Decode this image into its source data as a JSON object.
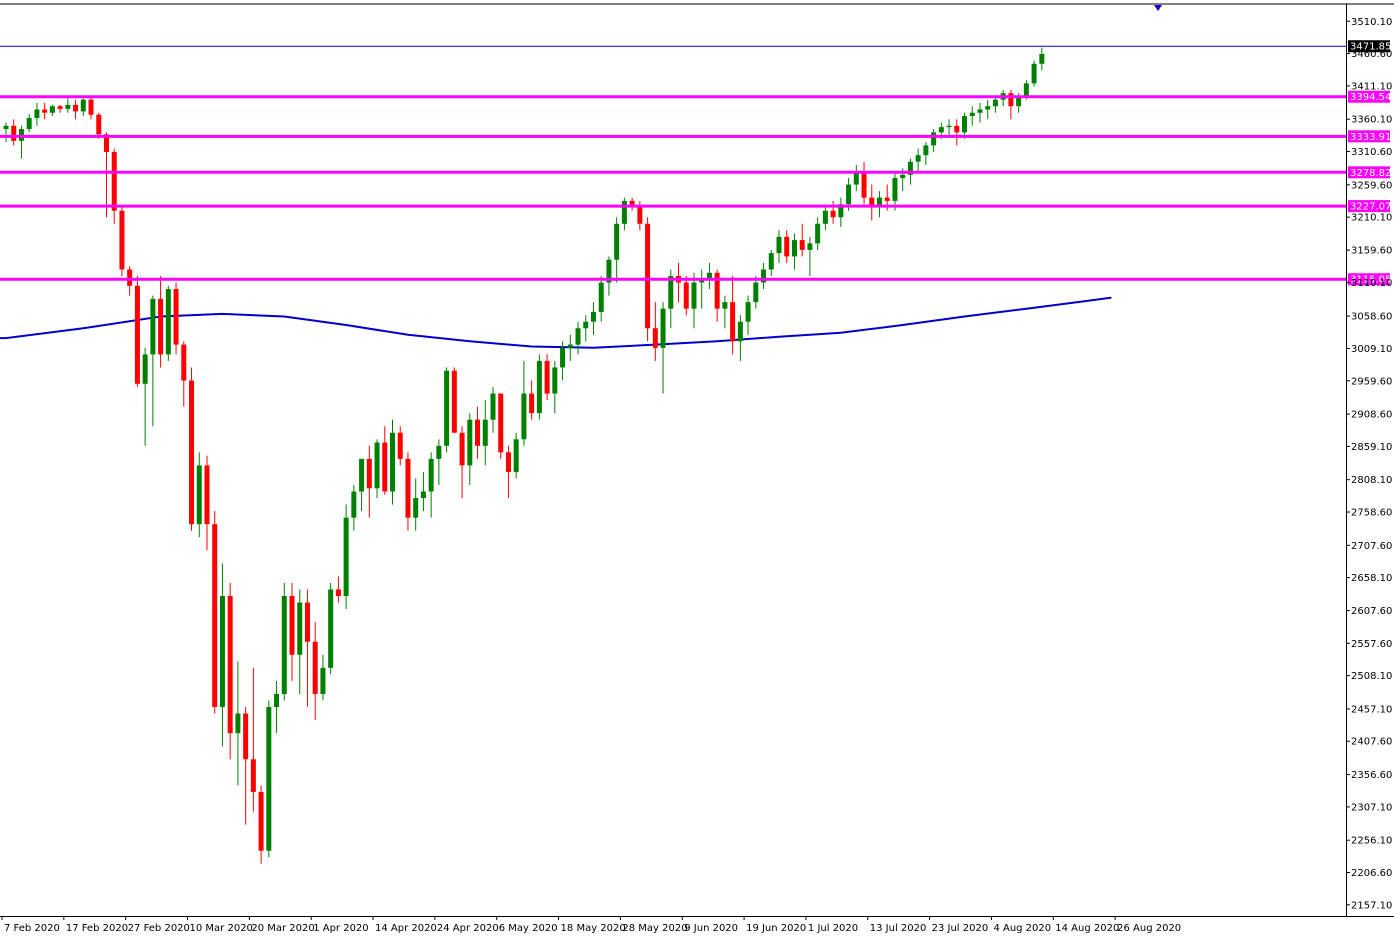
{
  "chart_data": {
    "type": "candlestick",
    "colors": {
      "background": "#ffffff",
      "bull": "#008000",
      "bear": "#ff0000",
      "moving_average": "#0000c8",
      "levels": "#ff00ff",
      "current_price": "#0000c8",
      "axis": "#000000"
    },
    "y_ticks": [
      "3510.10",
      "3460.60",
      "3411.10",
      "3360.10",
      "3310.60",
      "3259.60",
      "3210.10",
      "3159.60",
      "3110.10",
      "3058.60",
      "3009.10",
      "2959.60",
      "2908.60",
      "2859.10",
      "2808.10",
      "2758.60",
      "2707.60",
      "2658.10",
      "2607.60",
      "2557.60",
      "2508.10",
      "2457.10",
      "2407.60",
      "2356.60",
      "2307.10",
      "2256.10",
      "2206.60",
      "2157.10"
    ],
    "x_ticks": [
      "7 Feb 2020",
      "17 Feb 2020",
      "27 Feb 2020",
      "10 Mar 2020",
      "20 Mar 2020",
      "1 Apr 2020",
      "14 Apr 2020",
      "24 Apr 2020",
      "6 May 2020",
      "18 May 2020",
      "28 May 2020",
      "9 Jun 2020",
      "19 Jun 2020",
      "1 Jul 2020",
      "13 Jul 2020",
      "23 Jul 2020",
      "4 Aug 2020",
      "14 Aug 2020",
      "26 Aug 2020"
    ],
    "x_tick_bars": [
      0,
      8,
      16,
      24,
      32,
      40,
      48,
      56,
      64,
      72,
      80,
      88,
      96,
      104,
      112,
      120,
      128,
      136,
      144
    ],
    "ylim": [
      2140,
      3535
    ],
    "horizontal_levels": [
      {
        "label": "3394.54",
        "value": 3394.54
      },
      {
        "label": "3333.91",
        "value": 3333.91
      },
      {
        "label": "3278.82",
        "value": 3278.82
      },
      {
        "label": "3227.07",
        "value": 3227.07
      },
      {
        "label": "3115.05",
        "value": 3115.05
      }
    ],
    "current_price": {
      "label": "3471.85",
      "value": 3471.85
    },
    "candles": [
      [
        3345,
        3355,
        3325,
        3350
      ],
      [
        3350,
        3360,
        3320,
        3327
      ],
      [
        3327,
        3350,
        3300,
        3345
      ],
      [
        3345,
        3368,
        3340,
        3362
      ],
      [
        3362,
        3385,
        3350,
        3375
      ],
      [
        3375,
        3385,
        3360,
        3370
      ],
      [
        3370,
        3382,
        3365,
        3380
      ],
      [
        3380,
        3382,
        3370,
        3376
      ],
      [
        3376,
        3392,
        3370,
        3382
      ],
      [
        3382,
        3390,
        3360,
        3372
      ],
      [
        3372,
        3392,
        3365,
        3390
      ],
      [
        3390,
        3395,
        3360,
        3367
      ],
      [
        3367,
        3370,
        3330,
        3337
      ],
      [
        3337,
        3340,
        3210,
        3310
      ],
      [
        3310,
        3315,
        3200,
        3220
      ],
      [
        3220,
        3225,
        3120,
        3130
      ],
      [
        3130,
        3135,
        3090,
        3105
      ],
      [
        3105,
        3120,
        2950,
        2955
      ],
      [
        2955,
        3010,
        2860,
        3000
      ],
      [
        3000,
        3090,
        2890,
        3085
      ],
      [
        3085,
        3120,
        2980,
        3000
      ],
      [
        3000,
        3105,
        2990,
        3100
      ],
      [
        3100,
        3110,
        3000,
        3015
      ],
      [
        3015,
        3020,
        2920,
        2960
      ],
      [
        2960,
        2980,
        2730,
        2740
      ],
      [
        2740,
        2850,
        2720,
        2830
      ],
      [
        2830,
        2845,
        2700,
        2740
      ],
      [
        2740,
        2760,
        2450,
        2460
      ],
      [
        2460,
        2680,
        2400,
        2630
      ],
      [
        2630,
        2650,
        2380,
        2420
      ],
      [
        2420,
        2530,
        2340,
        2450
      ],
      [
        2450,
        2460,
        2280,
        2380
      ],
      [
        2380,
        2520,
        2300,
        2330
      ],
      [
        2330,
        2340,
        2220,
        2240
      ],
      [
        2240,
        2470,
        2230,
        2460
      ],
      [
        2460,
        2500,
        2420,
        2480
      ],
      [
        2480,
        2650,
        2470,
        2630
      ],
      [
        2630,
        2650,
        2500,
        2540
      ],
      [
        2540,
        2640,
        2480,
        2620
      ],
      [
        2620,
        2640,
        2460,
        2560
      ],
      [
        2560,
        2590,
        2440,
        2480
      ],
      [
        2480,
        2540,
        2470,
        2520
      ],
      [
        2520,
        2650,
        2510,
        2640
      ],
      [
        2640,
        2660,
        2620,
        2630
      ],
      [
        2630,
        2770,
        2610,
        2750
      ],
      [
        2750,
        2800,
        2730,
        2790
      ],
      [
        2790,
        2830,
        2760,
        2840
      ],
      [
        2840,
        2860,
        2750,
        2795
      ],
      [
        2795,
        2870,
        2780,
        2865
      ],
      [
        2865,
        2890,
        2785,
        2790
      ],
      [
        2790,
        2900,
        2770,
        2880
      ],
      [
        2880,
        2890,
        2830,
        2840
      ],
      [
        2840,
        2850,
        2730,
        2750
      ],
      [
        2750,
        2810,
        2730,
        2780
      ],
      [
        2780,
        2820,
        2760,
        2790
      ],
      [
        2790,
        2850,
        2750,
        2840
      ],
      [
        2840,
        2870,
        2800,
        2860
      ],
      [
        2860,
        2980,
        2850,
        2975
      ],
      [
        2975,
        2980,
        2880,
        2880
      ],
      [
        2880,
        2890,
        2780,
        2830
      ],
      [
        2830,
        2910,
        2800,
        2900
      ],
      [
        2900,
        2920,
        2840,
        2860
      ],
      [
        2860,
        2930,
        2830,
        2900
      ],
      [
        2900,
        2950,
        2880,
        2940
      ],
      [
        2940,
        2940,
        2840,
        2850
      ],
      [
        2850,
        2860,
        2780,
        2820
      ],
      [
        2820,
        2880,
        2810,
        2870
      ],
      [
        2870,
        2990,
        2860,
        2940
      ],
      [
        2940,
        2960,
        2900,
        2910
      ],
      [
        2910,
        3000,
        2900,
        2990
      ],
      [
        2990,
        3000,
        2930,
        2940
      ],
      [
        2940,
        2990,
        2910,
        2980
      ],
      [
        2980,
        3020,
        2960,
        3010
      ],
      [
        3010,
        3030,
        2990,
        3015
      ],
      [
        3015,
        3050,
        3000,
        3040
      ],
      [
        3040,
        3060,
        3020,
        3050
      ],
      [
        3050,
        3080,
        3030,
        3065
      ],
      [
        3065,
        3120,
        3050,
        3110
      ],
      [
        3110,
        3150,
        3090,
        3145
      ],
      [
        3145,
        3210,
        3110,
        3200
      ],
      [
        3200,
        3240,
        3190,
        3235
      ],
      [
        3235,
        3240,
        3220,
        3228
      ],
      [
        3228,
        3235,
        3190,
        3200
      ],
      [
        3200,
        3210,
        3020,
        3040
      ],
      [
        3040,
        3080,
        2990,
        3010
      ],
      [
        3010,
        3080,
        2940,
        3070
      ],
      [
        3070,
        3130,
        3040,
        3120
      ],
      [
        3120,
        3140,
        3080,
        3110
      ],
      [
        3110,
        3120,
        3060,
        3070
      ],
      [
        3070,
        3125,
        3040,
        3110
      ],
      [
        3110,
        3130,
        3070,
        3115
      ],
      [
        3115,
        3140,
        3100,
        3125
      ],
      [
        3125,
        3130,
        3050,
        3070
      ],
      [
        3070,
        3090,
        3040,
        3080
      ],
      [
        3080,
        3120,
        3000,
        3020
      ],
      [
        3020,
        3060,
        2990,
        3050
      ],
      [
        3050,
        3090,
        3030,
        3080
      ],
      [
        3080,
        3120,
        3070,
        3110
      ],
      [
        3110,
        3140,
        3100,
        3130
      ],
      [
        3130,
        3160,
        3120,
        3155
      ],
      [
        3155,
        3190,
        3140,
        3180
      ],
      [
        3180,
        3190,
        3140,
        3150
      ],
      [
        3150,
        3185,
        3130,
        3175
      ],
      [
        3175,
        3200,
        3150,
        3160
      ],
      [
        3160,
        3180,
        3120,
        3170
      ],
      [
        3170,
        3210,
        3160,
        3200
      ],
      [
        3200,
        3230,
        3190,
        3220
      ],
      [
        3220,
        3235,
        3200,
        3210
      ],
      [
        3210,
        3240,
        3195,
        3230
      ],
      [
        3230,
        3270,
        3220,
        3260
      ],
      [
        3260,
        3290,
        3250,
        3280
      ],
      [
        3280,
        3295,
        3230,
        3240
      ],
      [
        3240,
        3260,
        3205,
        3225
      ],
      [
        3225,
        3250,
        3210,
        3240
      ],
      [
        3240,
        3260,
        3220,
        3235
      ],
      [
        3235,
        3280,
        3220,
        3270
      ],
      [
        3270,
        3285,
        3250,
        3275
      ],
      [
        3275,
        3300,
        3260,
        3295
      ],
      [
        3295,
        3315,
        3280,
        3305
      ],
      [
        3305,
        3325,
        3290,
        3320
      ],
      [
        3320,
        3345,
        3310,
        3340
      ],
      [
        3340,
        3355,
        3330,
        3348
      ],
      [
        3348,
        3360,
        3335,
        3350
      ],
      [
        3350,
        3360,
        3320,
        3340
      ],
      [
        3340,
        3370,
        3330,
        3365
      ],
      [
        3365,
        3380,
        3350,
        3370
      ],
      [
        3370,
        3385,
        3355,
        3375
      ],
      [
        3375,
        3390,
        3360,
        3380
      ],
      [
        3380,
        3395,
        3370,
        3390
      ],
      [
        3390,
        3405,
        3380,
        3400
      ],
      [
        3400,
        3405,
        3360,
        3380
      ],
      [
        3380,
        3400,
        3370,
        3395
      ],
      [
        3395,
        3420,
        3390,
        3415
      ],
      [
        3415,
        3450,
        3410,
        3445
      ],
      [
        3445,
        3470,
        3435,
        3460
      ]
    ],
    "moving_average": [
      [
        0,
        3025
      ],
      [
        10,
        3040
      ],
      [
        20,
        3058
      ],
      [
        28,
        3062
      ],
      [
        36,
        3058
      ],
      [
        44,
        3045
      ],
      [
        52,
        3030
      ],
      [
        60,
        3020
      ],
      [
        68,
        3012
      ],
      [
        76,
        3010
      ],
      [
        84,
        3015
      ],
      [
        92,
        3020
      ],
      [
        100,
        3027
      ],
      [
        108,
        3033
      ],
      [
        116,
        3045
      ],
      [
        124,
        3058
      ],
      [
        132,
        3070
      ],
      [
        140,
        3082
      ],
      [
        143,
        3087
      ]
    ]
  }
}
